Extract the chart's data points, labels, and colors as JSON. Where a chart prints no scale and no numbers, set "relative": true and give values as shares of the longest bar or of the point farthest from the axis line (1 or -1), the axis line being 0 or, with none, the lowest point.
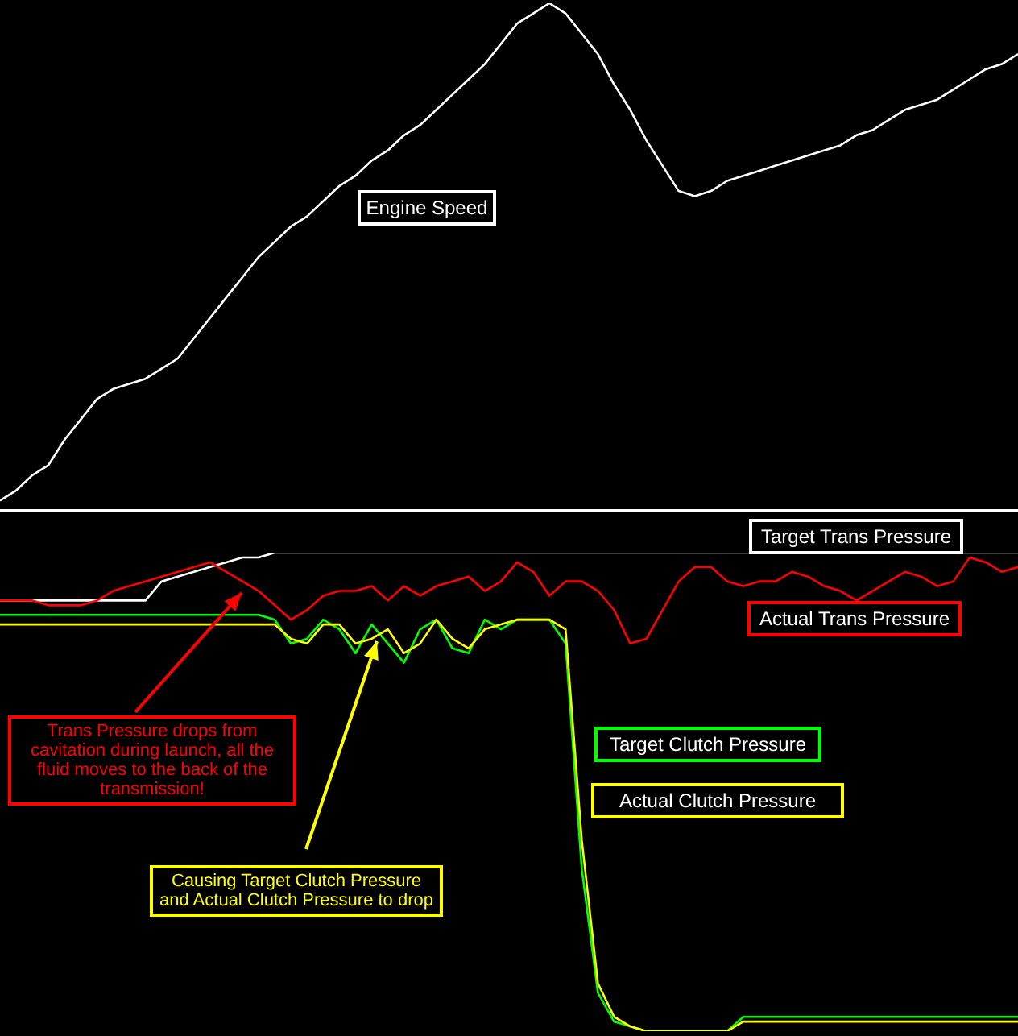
{
  "chart_data": [
    {
      "type": "line",
      "relative": true,
      "categories": [
        null,
        null,
        null,
        null,
        null,
        null,
        null,
        null,
        null,
        null,
        null,
        null,
        null,
        null,
        null,
        null,
        null,
        null,
        null,
        null,
        null,
        null,
        null,
        null,
        null,
        null,
        null,
        null,
        null,
        null,
        null,
        null,
        null,
        null,
        null,
        null,
        null,
        null,
        null,
        null,
        null,
        null,
        null,
        null,
        null,
        null,
        null,
        null,
        null,
        null,
        null,
        null,
        null,
        null,
        null,
        null,
        null,
        null,
        null,
        null,
        null,
        null,
        null,
        null
      ],
      "marker": "none",
      "line_style": "solid",
      "series": [
        {
          "name": "Engine Speed",
          "color": "#ffffff",
          "values": [
            0.02,
            0.04,
            0.07,
            0.09,
            0.14,
            0.18,
            0.22,
            0.24,
            0.25,
            0.26,
            0.28,
            0.3,
            0.34,
            0.38,
            0.42,
            0.46,
            0.5,
            0.53,
            0.56,
            0.58,
            0.61,
            0.64,
            0.66,
            0.69,
            0.71,
            0.74,
            0.76,
            0.79,
            0.82,
            0.85,
            0.88,
            0.92,
            0.96,
            0.98,
            1,
            0.98,
            0.94,
            0.9,
            0.84,
            0.79,
            0.73,
            0.68,
            0.63,
            0.62,
            0.63,
            0.65,
            0.66,
            0.67,
            0.68,
            0.69,
            0.7,
            0.71,
            0.72,
            0.74,
            0.75,
            0.77,
            0.79,
            0.8,
            0.81,
            0.83,
            0.85,
            0.87,
            0.88,
            0.9
          ]
        }
      ]
    },
    {
      "type": "line",
      "relative": true,
      "categories": [
        null,
        null,
        null,
        null,
        null,
        null,
        null,
        null,
        null,
        null,
        null,
        null,
        null,
        null,
        null,
        null,
        null,
        null,
        null,
        null,
        null,
        null,
        null,
        null,
        null,
        null,
        null,
        null,
        null,
        null,
        null,
        null,
        null,
        null,
        null,
        null,
        null,
        null,
        null,
        null,
        null,
        null,
        null,
        null,
        null,
        null,
        null,
        null,
        null,
        null,
        null,
        null,
        null,
        null,
        null,
        null,
        null,
        null,
        null,
        null,
        null,
        null,
        null,
        null
      ],
      "marker": "none",
      "line_style": "solid",
      "series": [
        {
          "name": "Target Trans Pressure",
          "color": "#ffffff",
          "values": [
            0.9,
            0.9,
            0.9,
            0.9,
            0.9,
            0.9,
            0.9,
            0.9,
            0.9,
            0.9,
            0.94,
            0.95,
            0.96,
            0.97,
            0.98,
            0.99,
            0.99,
            1,
            1,
            1,
            1,
            1,
            1,
            1,
            1,
            1,
            1,
            1,
            1,
            1,
            1,
            1,
            1,
            1,
            1,
            1,
            1,
            1,
            1,
            1,
            1,
            1,
            1,
            1,
            1,
            1,
            1,
            1,
            1,
            1,
            1,
            1,
            1,
            1,
            1,
            1,
            1,
            1,
            1,
            1,
            1,
            1,
            1,
            1
          ]
        },
        {
          "name": "Actual Trans Pressure",
          "color": "#ff0000",
          "values": [
            0.9,
            0.9,
            0.9,
            0.89,
            0.89,
            0.89,
            0.9,
            0.92,
            0.93,
            0.94,
            0.95,
            0.96,
            0.97,
            0.98,
            0.96,
            0.94,
            0.92,
            0.89,
            0.86,
            0.88,
            0.91,
            0.92,
            0.92,
            0.93,
            0.9,
            0.93,
            0.91,
            0.93,
            0.94,
            0.95,
            0.92,
            0.94,
            0.98,
            0.96,
            0.91,
            0.94,
            0.94,
            0.92,
            0.88,
            0.81,
            0.82,
            0.88,
            0.94,
            0.97,
            0.97,
            0.94,
            0.93,
            0.94,
            0.94,
            0.96,
            0.95,
            0.93,
            0.92,
            0.9,
            0.92,
            0.94,
            0.96,
            0.95,
            0.93,
            0.94,
            0.99,
            0.98,
            0.96,
            0.97
          ]
        },
        {
          "name": "Target Clutch Pressure",
          "color": "#00ff00",
          "values": [
            0.87,
            0.87,
            0.87,
            0.87,
            0.87,
            0.87,
            0.87,
            0.87,
            0.87,
            0.87,
            0.87,
            0.87,
            0.87,
            0.87,
            0.87,
            0.87,
            0.87,
            0.86,
            0.81,
            0.82,
            0.86,
            0.84,
            0.79,
            0.85,
            0.81,
            0.77,
            0.84,
            0.86,
            0.8,
            0.79,
            0.86,
            0.84,
            0.86,
            0.86,
            0.86,
            0.81,
            0.34,
            0.08,
            0.02,
            0.01,
            0,
            0,
            0,
            0,
            0,
            0,
            0.03,
            0.03,
            0.03,
            0.03,
            0.03,
            0.03,
            0.03,
            0.03,
            0.03,
            0.03,
            0.03,
            0.03,
            0.03,
            0.03,
            0.03,
            0.03,
            0.03,
            0.03
          ]
        },
        {
          "name": "Actual Clutch Pressure",
          "color": "#ffff00",
          "values": [
            0.85,
            0.85,
            0.85,
            0.85,
            0.85,
            0.85,
            0.85,
            0.85,
            0.85,
            0.85,
            0.85,
            0.85,
            0.85,
            0.85,
            0.85,
            0.85,
            0.85,
            0.85,
            0.82,
            0.81,
            0.85,
            0.85,
            0.81,
            0.82,
            0.84,
            0.79,
            0.81,
            0.86,
            0.82,
            0.8,
            0.84,
            0.85,
            0.86,
            0.86,
            0.86,
            0.84,
            0.4,
            0.1,
            0.03,
            0.01,
            0,
            0,
            0,
            0,
            0,
            0,
            0.02,
            0.02,
            0.02,
            0.02,
            0.02,
            0.02,
            0.02,
            0.02,
            0.02,
            0.02,
            0.02,
            0.02,
            0.02,
            0.02,
            0.02,
            0.02,
            0.02,
            0.02
          ]
        }
      ],
      "annotations": [
        "Trans Pressure drops from cavitation during launch, all the fluid moves to the back of the transmission!",
        "Causing Target Clutch Pressure and Actual Clutch Pressure to drop"
      ]
    }
  ]
}
